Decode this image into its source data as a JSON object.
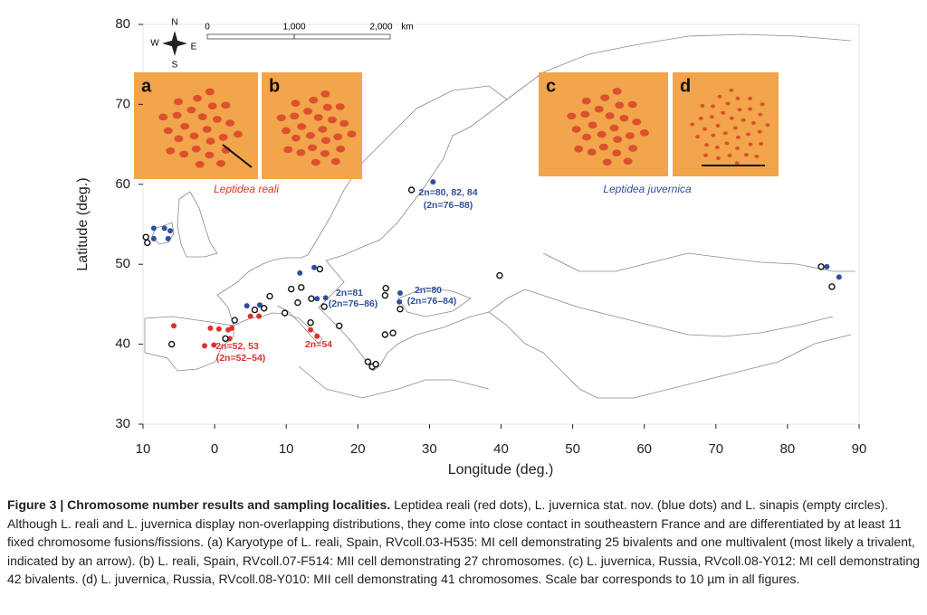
{
  "chart_data": {
    "type": "scatter",
    "xlabel": "Longitude (deg.)",
    "ylabel": "Latitude (deg.)",
    "xlim": [
      -10,
      90
    ],
    "ylim": [
      30,
      80
    ],
    "xticks": [
      {
        "value": -10,
        "label": "10"
      },
      0,
      10,
      20,
      30,
      40,
      50,
      60,
      70,
      80,
      90
    ],
    "yticks": [
      30,
      40,
      50,
      60,
      70,
      80
    ],
    "series": [
      {
        "name": "Leptidea reali",
        "color": "#e0302a",
        "fill": true,
        "x": [
          -5.7,
          -0.6,
          0.6,
          1.9,
          2.4,
          -1.4,
          -0.1,
          2.1,
          5.0,
          6.2,
          13.4,
          14.3
        ],
        "values": [
          42.3,
          42.0,
          41.9,
          41.8,
          42.0,
          39.8,
          39.9,
          40.7,
          43.5,
          43.5,
          41.8,
          41.0
        ]
      },
      {
        "name": "Leptidea juvernica",
        "color": "#2f4f9e",
        "fill": true,
        "x": [
          -8.5,
          -7.0,
          -6.2,
          -6.5,
          -8.5,
          4.5,
          6.3,
          11.9,
          13.9,
          14.3,
          15.5,
          25.9,
          25.8,
          30.5,
          85.5,
          87.2
        ],
        "values": [
          54.5,
          54.5,
          54.2,
          53.2,
          53.2,
          44.8,
          44.9,
          48.9,
          49.6,
          45.7,
          45.8,
          46.4,
          45.3,
          60.3,
          49.7,
          48.4
        ]
      },
      {
        "color": "#111111",
        "fill": false,
        "x": [
          -9.6,
          -9.4,
          -6.0,
          2.8,
          1.5,
          5.6,
          6.9,
          7.7,
          9.8,
          10.7,
          12.1,
          11.6,
          13.5,
          13.4,
          15.3,
          17.4,
          14.7,
          21.4,
          22.0,
          22.5,
          23.8,
          23.9,
          23.8,
          24.9,
          25.9,
          27.5,
          39.8,
          84.7,
          86.2
        ],
        "values": [
          53.4,
          52.7,
          40.0,
          43.0,
          40.7,
          44.3,
          44.5,
          46.0,
          43.9,
          46.9,
          47.1,
          45.2,
          45.7,
          42.7,
          44.7,
          42.3,
          49.4,
          37.8,
          37.2,
          37.5,
          46.1,
          47.0,
          41.2,
          41.4,
          44.4,
          59.3,
          48.6,
          49.7,
          47.2
        ]
      }
    ],
    "annotations": [
      "2n=80, 82, 84",
      "(2n=76–88)",
      "2n=81",
      "(2n=76–86)",
      "2n=80",
      "(2n=76–84)",
      "2n=52, 53",
      "(2n=52–54)",
      "2n=54"
    ]
  },
  "compass": [
    "N",
    "E",
    "S",
    "W"
  ],
  "scale_bar": [
    "0",
    "1,000",
    "2,000",
    "km"
  ],
  "insets": [
    "a",
    "b",
    "c",
    "d"
  ],
  "caption": {
    "label": "Figure 3 | Chromosome number results and sampling localities.",
    "text": "Leptidea reali (red dots), L. juvernica stat. nov. (blue dots) and L. sinapis (empty circles). Although L. reali and L. juvernica display non-overlapping distributions, they come into close contact in southeastern France and are differentiated by at least 11 fixed chromosome fusions/fissions. (a) Karyotype of L. reali, Spain, RVcoll.03-H535: MI cell demonstrating 25 bivalents and one multivalent (most likely a trivalent, indicated by an arrow). (b) L. reali, Spain, RVcoll.07-F514: MII cell demonstrating 27 chromosomes. (c) L. juvernica, Russia, RVcoll.08-Y012: MI cell demonstrating 42 bivalents. (d) L. juvernica, Russia, RVcoll.08-Y010: MII cell demonstrating 41 chromosomes. Scale bar corresponds to 10 µm in all figures."
  }
}
